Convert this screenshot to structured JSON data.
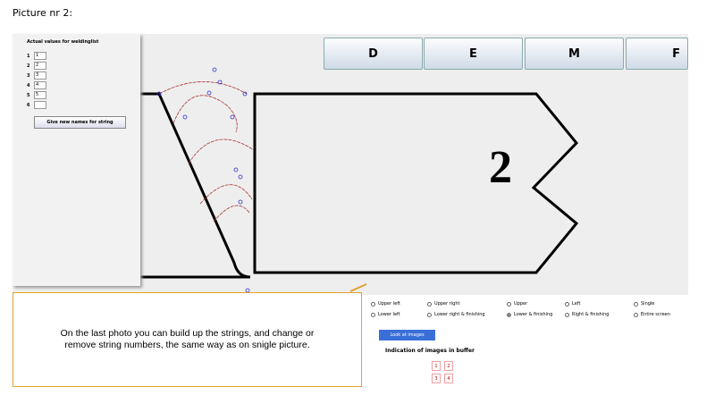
{
  "header": {
    "title": "Picture nr 2:"
  },
  "panel": {
    "title": "Actual values for weldinglist",
    "rows": [
      {
        "label": "1",
        "value": "1"
      },
      {
        "label": "2",
        "value": "2"
      },
      {
        "label": "3",
        "value": "3"
      },
      {
        "label": "4",
        "value": "4"
      },
      {
        "label": "5",
        "value": "5"
      },
      {
        "label": "6"
      }
    ],
    "button": "Give new names for string"
  },
  "tabs": [
    "D",
    "E",
    "M",
    "F"
  ],
  "drawing": {
    "label": "2"
  },
  "callout": {
    "text": "On the last photo you can build up the strings, and change or remove string numbers, the same way as on snigle picture."
  },
  "options": [
    {
      "label": "Upper left"
    },
    {
      "label": "Upper right"
    },
    {
      "label": "Upper"
    },
    {
      "label": "Left"
    },
    {
      "label": "Single"
    },
    {
      "label": "Lower left"
    },
    {
      "label": "Lower right & finishing"
    },
    {
      "label": "Lower & finishing",
      "selected": true
    },
    {
      "label": "Right & finishing"
    },
    {
      "label": "Entire screen"
    }
  ],
  "look_button": "Look at images",
  "buffer": {
    "title": "Indication of images in buffer",
    "cells": [
      "1",
      "2",
      "3",
      "4"
    ]
  }
}
